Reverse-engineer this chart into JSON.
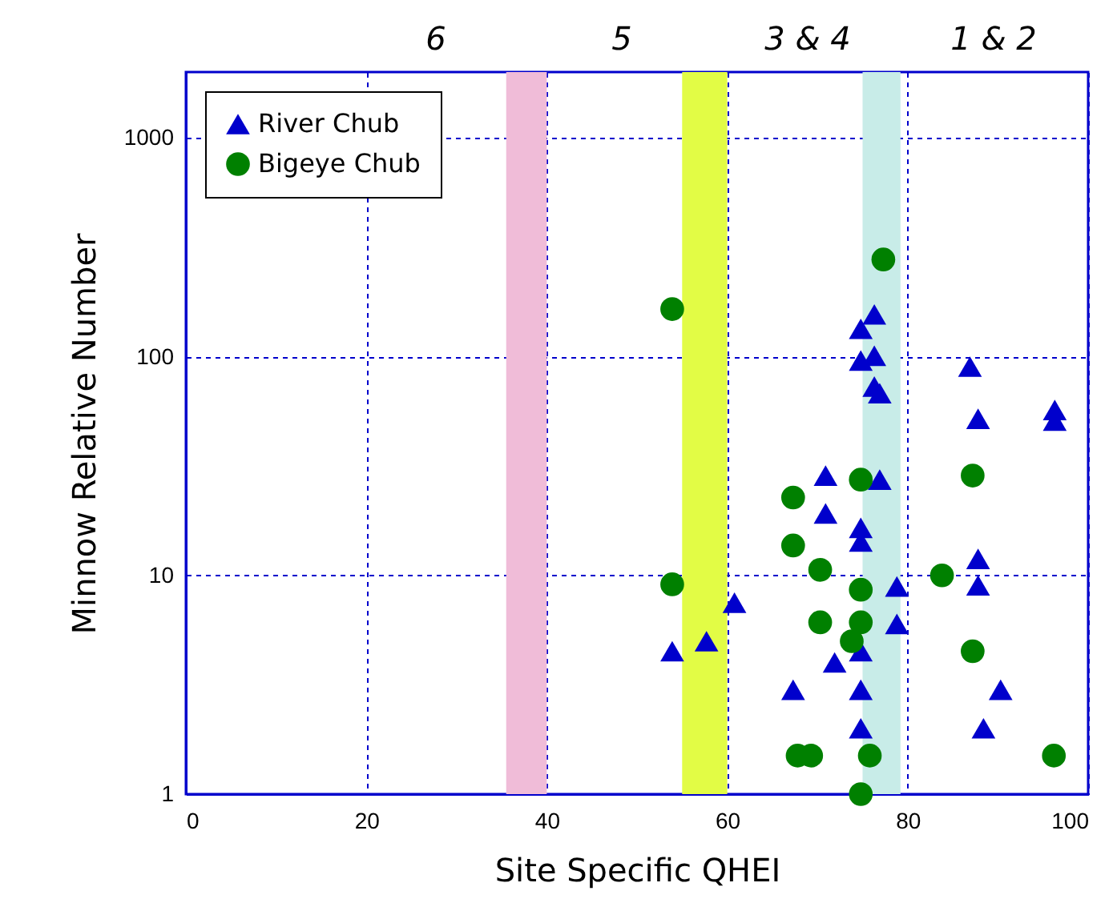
{
  "chart_data": {
    "type": "scatter",
    "xlabel": "Site Specific QHEI",
    "ylabel": "Minnow Relative Number",
    "log": "y",
    "grid": true,
    "legend": "top left",
    "xlim": [
      0,
      100
    ],
    "xticks": [
      0,
      20,
      40,
      60,
      80,
      100
    ],
    "ylim": [
      1,
      2000
    ],
    "yticks": [
      1,
      10,
      100,
      1000
    ],
    "bands": [
      {
        "axis": "x",
        "from": 35.5,
        "to": 40,
        "color": "#f0bcd8"
      },
      {
        "axis": "x",
        "from": 55,
        "to": 60,
        "color": "#e2fc45"
      },
      {
        "axis": "x",
        "from": 75,
        "to": 79.2,
        "color": "#c8ece8"
      }
    ],
    "annotations": [
      "6",
      "5",
      "3 & 4",
      "1 & 2"
    ],
    "series": [
      {
        "name": "River Chub",
        "color": "#0000cc",
        "marker": "triangle",
        "x": [
          76.3,
          74.8,
          74.8,
          76.3,
          76.3,
          76.9,
          86.9,
          87.8,
          96.3,
          96.3,
          70.9,
          76.9,
          70.9,
          74.8,
          74.8,
          87.8,
          78.8,
          87.8,
          60.8,
          78.8,
          57.7,
          53.9,
          74.8,
          71.9,
          67.3,
          74.8,
          90.3,
          74.8,
          88.4
        ],
        "values": [
          156,
          134,
          96,
          101,
          73,
          68,
          90,
          52,
          57,
          51,
          28.6,
          27.4,
          19.2,
          16.5,
          14.3,
          11.9,
          8.9,
          9,
          7.5,
          6,
          5,
          4.5,
          4.5,
          4,
          3,
          3,
          3,
          2,
          2
        ]
      },
      {
        "name": "Bigeye Chub",
        "color": "#008000",
        "marker": "circle",
        "x": [
          53.9,
          77.3,
          74.8,
          67.3,
          87.2,
          67.3,
          70.3,
          83.8,
          53.9,
          74.8,
          70.3,
          74.8,
          73.8,
          87.2,
          67.8,
          69.3,
          75.8,
          96.2,
          74.8
        ],
        "values": [
          165,
          278,
          27.4,
          22.7,
          28.6,
          13.7,
          10.6,
          10,
          9.1,
          8.6,
          6.1,
          6.1,
          5,
          4.5,
          1.5,
          1.5,
          1.5,
          1.5,
          1
        ]
      }
    ]
  }
}
